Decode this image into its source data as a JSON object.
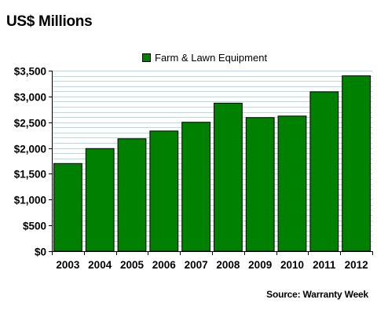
{
  "chart_data": {
    "type": "bar",
    "title": "US$ Millions",
    "source": "Source: Warranty Week",
    "categories": [
      "2003",
      "2004",
      "2005",
      "2006",
      "2007",
      "2008",
      "2009",
      "2010",
      "2011",
      "2012"
    ],
    "series": [
      {
        "name": "Farm & Lawn Equipment",
        "values": [
          1700,
          1990,
          2180,
          2330,
          2500,
          2870,
          2590,
          2620,
          3090,
          3400
        ]
      }
    ],
    "ylim": [
      0,
      3500
    ],
    "yticks": [
      0,
      500,
      1000,
      1500,
      2000,
      2500,
      3000,
      3500
    ],
    "ytick_labels": [
      "$0",
      "$500",
      "$1,000",
      "$1,500",
      "$2,000",
      "$2,500",
      "$3,000",
      "$3,500"
    ],
    "minor_gridlines_per_major": 5,
    "grid": true,
    "legend_position": "top-center",
    "colors": {
      "bar": "#008000",
      "bar_edge": "#000000",
      "plot_background": "#ffffff",
      "gridline": "#b7dbe6"
    }
  }
}
